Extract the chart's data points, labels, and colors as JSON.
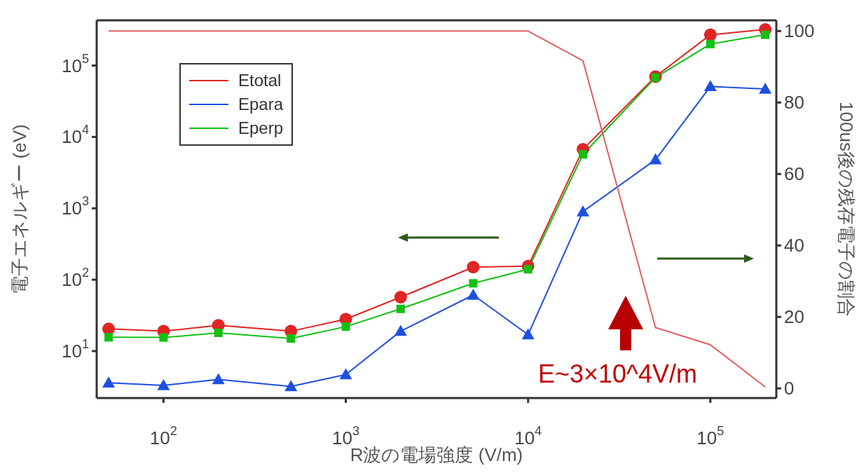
{
  "chart_data": {
    "type": "line",
    "xlabel": "R波の電場強度 (V/m)",
    "ylabel": "電子エネルギー (eV)",
    "y2label": "100us後の残存電子の割合",
    "x": [
      50,
      100,
      200,
      500,
      1000,
      2000,
      5000,
      10000,
      20000,
      50000,
      100000,
      200000
    ],
    "series": [
      {
        "name": "Etotal",
        "color": "#e02424",
        "marker": "circle",
        "values": [
          20.5,
          19,
          23,
          19,
          28,
          57,
          150,
          155,
          6700,
          70000,
          270000,
          320000
        ]
      },
      {
        "name": "Epara",
        "color": "#1f4fe0",
        "marker": "triangle",
        "values": [
          3.6,
          3.3,
          4.0,
          3.2,
          4.7,
          19,
          61,
          17,
          900,
          4800,
          51000,
          47000
        ]
      },
      {
        "name": "Eperp",
        "color": "#12c012",
        "marker": "square",
        "values": [
          15.6,
          15.5,
          18,
          15,
          22,
          39,
          89,
          140,
          5700,
          68000,
          200000,
          270000
        ]
      },
      {
        "color": "#e06060",
        "marker": "none",
        "axis": "y2",
        "values": [
          100,
          100,
          100,
          100,
          100,
          100,
          100,
          100,
          91.7,
          17,
          12.2,
          0.4
        ]
      }
    ],
    "log": "xy",
    "xlim": [
      43,
      230000
    ],
    "xticks": [
      {
        "value": 100,
        "label": "10$^{2}$"
      },
      {
        "value": 1000,
        "label": "10$^{3}$"
      },
      {
        "value": 10000,
        "label": "10$^{4}$"
      },
      {
        "value": 100000,
        "label": "10$^{5}$"
      }
    ],
    "ylim": [
      2.2,
      430000
    ],
    "yticks": [
      {
        "value": 10,
        "label": "10$^{1}$"
      },
      {
        "value": 100,
        "label": "10$^{2}$"
      },
      {
        "value": 1000,
        "label": "10$^{3}$"
      },
      {
        "value": 10000,
        "label": "10$^{4}$"
      },
      {
        "value": 100000,
        "label": "10$^{5}$"
      }
    ],
    "y2lim": [
      -2.7,
      103
    ],
    "y2ticks": [
      0,
      20,
      40,
      60,
      80,
      100
    ],
    "grid": false,
    "legend": "top left",
    "annotations": [
      "E~3×10^4V/m"
    ]
  }
}
